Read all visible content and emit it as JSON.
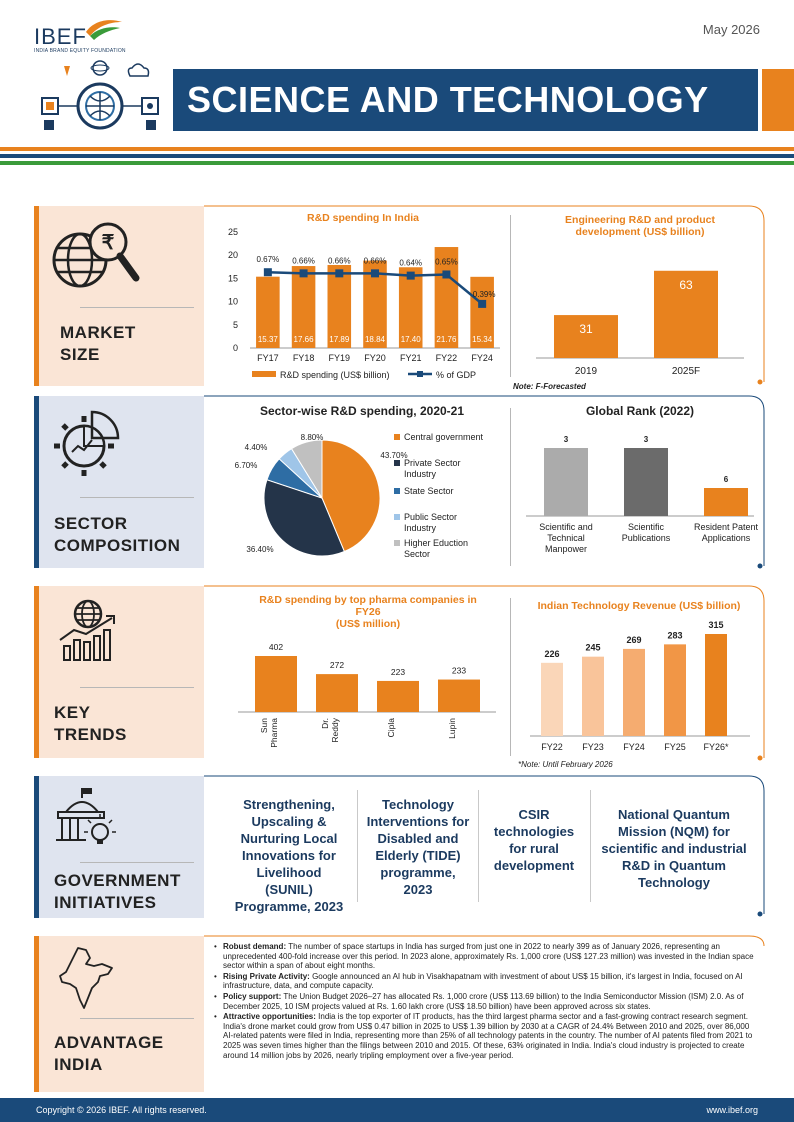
{
  "header": {
    "logo": "IBEF",
    "logo_sub": "INDIA BRAND EQUITY FOUNDATION",
    "date": "May 2026",
    "title": "SCIENCE AND TECHNOLOGY"
  },
  "colors": {
    "navy": "#1a4a7a",
    "orange": "#e8821e",
    "green": "#3a9b3a",
    "peach": "#fae5d6",
    "lightblue": "#dfe4ef"
  },
  "sections": {
    "market": {
      "label1": "MARKET",
      "label2": "SIZE",
      "icon": "globe-rupee-magnifier-icon"
    },
    "sector": {
      "label1": "SECTOR",
      "label2": "COMPOSITION",
      "icon": "gear-chart-icon"
    },
    "trends": {
      "label1": "KEY",
      "label2": "TRENDS",
      "icon": "globe-growth-chart-icon"
    },
    "gov": {
      "label1": "GOVERNMENT",
      "label2": "INITIATIVES",
      "icon": "government-building-bulb-icon"
    },
    "adv": {
      "label1": "ADVANTAGE",
      "label2": "INDIA",
      "icon": "india-map-icon"
    }
  },
  "chart_data": [
    {
      "type": "bar",
      "title": "R&D spending In India",
      "categories": [
        "FY17",
        "FY18",
        "FY19",
        "FY20",
        "FY21",
        "FY22",
        "FY24"
      ],
      "series": [
        {
          "name": "R&D spending (US$ billion)",
          "values": [
            15.37,
            17.66,
            17.89,
            18.84,
            17.4,
            21.76,
            15.34
          ],
          "labels": [
            "15.37",
            "17.66",
            "17.89",
            "18.84",
            "17.40",
            "21.76",
            "15.34"
          ]
        },
        {
          "name": "% of GDP",
          "type": "line",
          "values": [
            0.67,
            0.66,
            0.66,
            0.66,
            0.64,
            0.65,
            0.39
          ],
          "labels": [
            "0.67%",
            "0.66%",
            "0.66%",
            "0.66%",
            "0.64%",
            "0.65%",
            "0.39%"
          ]
        }
      ],
      "yticks": [
        "0",
        "5",
        "10",
        "15",
        "20",
        "25"
      ],
      "ylim": [
        0,
        25
      ]
    },
    {
      "type": "bar",
      "title": "Engineering R&D and product development (US$ billion)",
      "categories": [
        "2019",
        "2025F"
      ],
      "values": [
        31,
        63
      ],
      "note": "Note: F-Forecasted"
    },
    {
      "type": "pie",
      "title": "Sector-wise R&D spending, 2020-21",
      "slices": [
        {
          "label": "Central government",
          "value": 43.7,
          "text": "43.70%",
          "color": "#e8821e"
        },
        {
          "label": "Private Sector Industry",
          "value": 36.4,
          "text": "36.40%",
          "color": "#243449"
        },
        {
          "label": "State Sector",
          "value": 6.7,
          "text": "6.70%",
          "color": "#2e6da4"
        },
        {
          "label": "Public Sector Industry",
          "value": 4.4,
          "text": "4.40%",
          "color": "#9fc5e8"
        },
        {
          "label": "Higher Eduction Sector",
          "value": 8.8,
          "text": "8.80%",
          "color": "#c0c0c0"
        }
      ],
      "legend_lines": [
        [
          "Central government"
        ],
        [
          "Private Sector",
          "Industry"
        ],
        [
          "State Sector"
        ],
        [
          "Public Sector",
          "Industry"
        ],
        [
          "Higher Eduction",
          "Sector"
        ]
      ]
    },
    {
      "type": "bar",
      "title": "Global Rank (2022)",
      "categories": [
        "Scientific and Technical Manpower",
        "Scientific Publications",
        "Resident Patent Applications"
      ],
      "category_lines": [
        [
          "Scientific and",
          "Technical",
          "Manpower"
        ],
        [
          "Scientific",
          "Publications"
        ],
        [
          "Resident Patent",
          "Applications"
        ]
      ],
      "values": [
        3,
        3,
        6
      ],
      "colors": [
        "#ababab",
        "#6b6b6b",
        "#e8821e"
      ]
    },
    {
      "type": "bar",
      "title": "R&D spending by top pharma companies in FY26 (US$ million)",
      "title_lines": [
        "R&D spending by top pharma companies in",
        "FY26",
        "(US$ million)"
      ],
      "categories": [
        "Sun Pharma",
        "Dr. Reddy",
        "Cipla",
        "Lupin"
      ],
      "category_lines": [
        [
          "Sun",
          "Pharma"
        ],
        [
          "Dr.",
          "Reddy"
        ],
        [
          "Cipla"
        ],
        [
          "Lupin"
        ]
      ],
      "values": [
        402,
        272,
        223,
        233
      ]
    },
    {
      "type": "bar",
      "title": "Indian Technology Revenue (US$ billion)",
      "categories": [
        "FY22",
        "FY23",
        "FY24",
        "FY25",
        "FY26*"
      ],
      "values": [
        226,
        245,
        269,
        283,
        315
      ],
      "colors": [
        "#fad6b8",
        "#f9c49a",
        "#f5ac70",
        "#f19646",
        "#e8821e"
      ],
      "note": "*Note: Until February 2026"
    }
  ],
  "gov": {
    "items": [
      "Strengthening, Upscaling & Nurturing Local Innovations for Livelihood (SUNIL) Programme, 2023",
      "Technology Interventions for Disabled and Elderly (TIDE) programme, 2023",
      "CSIR technologies for rural development",
      "National Quantum Mission (NQM) for scientific and industrial R&D in Quantum Technology"
    ]
  },
  "advantage": {
    "bullets": [
      {
        "head": "Robust demand:",
        "text": "The number of space startups in India has surged from just one in 2022 to nearly 399 as of January 2026, representing an unprecedented 400-fold increase over this period. In 2023 alone, approximately Rs. 1,000 crore (US$ 127.23 million) was invested in the Indian space sector within a span of about eight months."
      },
      {
        "head": "Rising Private Activity:",
        "text": "Google announced an AI hub in Visakhapatnam with investment of about US$ 15 billion, it's largest in India, focused on AI infrastructure, data, and compute capacity."
      },
      {
        "head": "Policy support:",
        "text": "The Union Budget 2026–27 has allocated Rs. 1,000 crore (US$ 113.69 billion) to the India Semiconductor Mission (ISM) 2.0. As of December 2025, 10 ISM projects valued at Rs. 1.60 lakh crore (US$ 18.50 billion) have been approved across six states."
      },
      {
        "head": "Attractive opportunities:",
        "text": "India is the top exporter of IT products, has the third largest pharma sector and a fast-growing contract research segment. India's drone market could grow from US$ 0.47 billion in 2025 to US$ 1.39 billion by 2030 at a CAGR of 24.4% Between 2010 and 2025, over 86,000 AI-related patents were filed in India, representing more than 25% of all technology patents in the country. The number of AI patents filed from 2021 to 2025 was seven times higher than the filings between 2010 and 2015. Of these, 63% originated in India. India's cloud industry is projected to create around 14 million jobs by 2026, nearly tripling employment over a five-year period."
      }
    ]
  },
  "footer": {
    "copyright": "Copyright © 2026 IBEF. All rights reserved.",
    "url": "www.ibef.org"
  }
}
